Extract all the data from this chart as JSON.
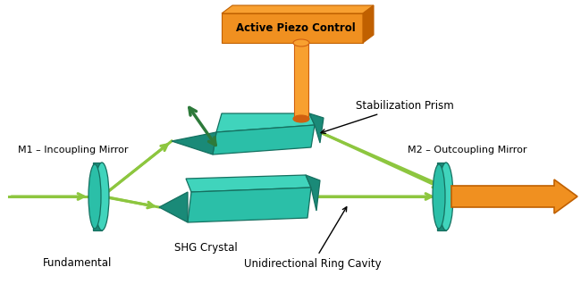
{
  "bg_color": "#ffffff",
  "teal_face": "#2bbfa8",
  "teal_top": "#40d4bc",
  "teal_side": "#1a8a78",
  "teal_edge": "#157060",
  "orange_box_face": "#f09020",
  "orange_box_edge": "#c06000",
  "orange_rod_light": "#f8a030",
  "orange_rod_dark": "#d06010",
  "green_beam": "#8dc63f",
  "green_dark": "#2d7a3a",
  "figsize": [
    6.5,
    3.18
  ],
  "dpi": 100,
  "labels": {
    "piezo": "Active Piezo Control",
    "stab": "Stabilization Prism",
    "m1": "M1 – Incoupling Mirror",
    "m2": "M2 – Outcoupling Mirror",
    "shg": "SHG Crystal",
    "fundamental": "Fundamental",
    "ring": "Unidirectional Ring Cavity"
  }
}
